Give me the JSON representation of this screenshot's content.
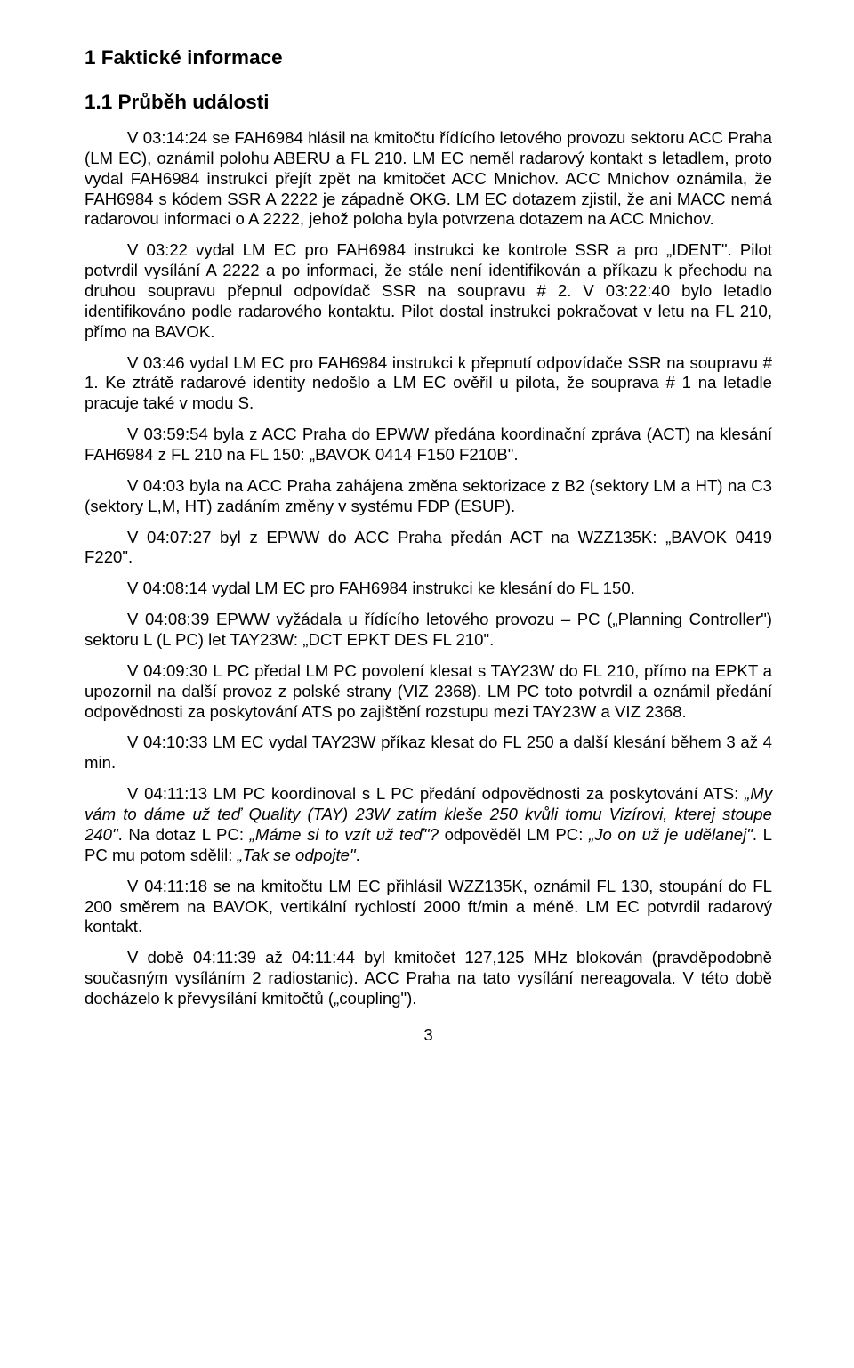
{
  "heading1": "1   Faktické informace",
  "heading2": "1.1   Průběh události",
  "paragraphs": [
    "V 03:14:24 se FAH6984 hlásil na kmitočtu řídícího letového provozu sektoru ACC Praha (LM EC), oznámil polohu ABERU a FL 210. LM EC neměl radarový kontakt s letadlem, proto vydal FAH6984 instrukci přejít zpět na kmitočet ACC Mnichov. ACC Mnichov oznámila, že FAH6984 s kódem SSR A 2222 je západně OKG. LM EC dotazem zjistil, že ani MACC nemá radarovou informaci o A 2222, jehož poloha byla potvrzena dotazem na ACC Mnichov.",
    "V 03:22 vydal LM EC pro FAH6984 instrukci ke kontrole SSR a pro „IDENT\". Pilot potvrdil vysílání A 2222 a po informaci, že stále není identifikován a příkazu k přechodu na druhou soupravu přepnul odpovídač SSR na soupravu # 2. V 03:22:40 bylo letadlo identifikováno podle radarového kontaktu. Pilot dostal instrukci pokračovat v letu na FL 210, přímo na BAVOK.",
    "V 03:46 vydal LM EC pro FAH6984 instrukci k přepnutí odpovídače SSR na soupravu # 1. Ke ztrátě radarové identity nedošlo a LM EC ověřil u pilota, že souprava # 1 na letadle pracuje také v modu S.",
    "V 03:59:54 byla z ACC Praha do EPWW předána koordinační zpráva (ACT) na klesání FAH6984 z FL 210 na FL 150: „BAVOK 0414 F150 F210B\".",
    "V 04:03 byla na ACC Praha zahájena změna sektorizace z B2 (sektory LM a HT) na C3 (sektory L,M, HT) zadáním změny v systému FDP (ESUP).",
    "V 04:07:27 byl z EPWW do ACC Praha předán ACT na WZZ135K: „BAVOK 0419 F220\".",
    "V 04:08:14 vydal LM EC pro FAH6984 instrukci ke klesání do FL 150.",
    "V 04:08:39 EPWW vyžádala u řídícího letového provozu – PC („Planning Controller\") sektoru L (L PC) let TAY23W: „DCT EPKT DES FL 210\".",
    "V 04:09:30 L PC předal LM PC povolení klesat s TAY23W do FL 210, přímo na EPKT a upozornil na další provoz z polské strany (VIZ 2368). LM PC toto potvrdil a oznámil předání odpovědnosti za poskytování ATS po zajištění rozstupu mezi TAY23W a VIZ 2368.",
    "V 04:10:33 LM EC vydal TAY23W příkaz klesat do FL 250 a další klesání během 3 až 4 min."
  ],
  "p11": {
    "t1": "V 04:11:13 LM PC koordinoval s L PC předání odpovědnosti za poskytování ATS: ",
    "i1": "„My vám to dáme už teď Quality (TAY) 23W zatím kleše 250 kvůli tomu Vizírovi, kterej stoupe 240\"",
    "t2": ". Na dotaz L PC: ",
    "i2": "„Máme si to vzít už teď\"?",
    "t3": " odpověděl LM PC: ",
    "i3": "„Jo on už je udělanej\"",
    "t4": ". L PC mu potom sdělil: ",
    "i4": "„Tak se odpojte\"",
    "t5": "."
  },
  "p12": "V 04:11:18 se na kmitočtu LM EC přihlásil WZZ135K, oznámil FL 130, stoupání do FL 200 směrem na BAVOK, vertikální rychlostí 2000 ft/min a méně. LM EC potvrdil radarový kontakt.",
  "p13": "V době 04:11:39 až 04:11:44 byl kmitočet 127,125 MHz blokován (pravděpodobně současným vysíláním 2 radiostanic). ACC Praha na tato vysílání nereagovala. V této době docházelo k převysílání kmitočtů („coupling\").",
  "page_number": "3"
}
